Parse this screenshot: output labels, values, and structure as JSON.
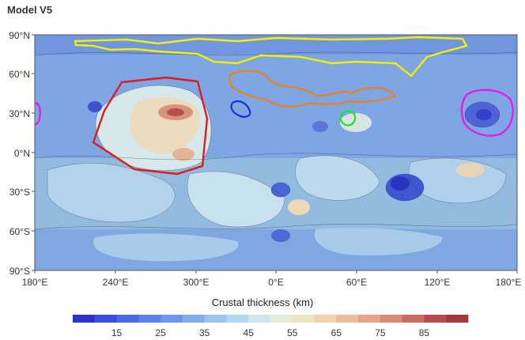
{
  "title": "Model V5",
  "map": {
    "lat_labels": [
      "90°N",
      "60°N",
      "30°N",
      "0°N",
      "30°S",
      "60°S",
      "90°S"
    ],
    "lon_labels": [
      "180°E",
      "240°E",
      "300°E",
      "0°E",
      "60°E",
      "120°E",
      "180°E"
    ],
    "regions": [
      {
        "name": "north-polar-yellow",
        "color": "#f2f000"
      },
      {
        "name": "tharsis-red",
        "color": "#dd1c1c"
      },
      {
        "name": "orange-basin",
        "color": "#f08018"
      },
      {
        "name": "blue-region",
        "color": "#1630d8"
      },
      {
        "name": "green-region",
        "color": "#22e02a"
      },
      {
        "name": "magenta-region",
        "color": "#e51ee0"
      }
    ]
  },
  "colorbar": {
    "title": "Crustal thickness (km)",
    "tick_labels": [
      "15",
      "25",
      "35",
      "45",
      "55",
      "65",
      "75",
      "85"
    ],
    "colors": [
      "#2e32c9",
      "#3b4fd8",
      "#4a6ae0",
      "#5b82e6",
      "#6d98ec",
      "#83ade8",
      "#9cc4ec",
      "#b6d6ee",
      "#cfe6ee",
      "#e2ecd6",
      "#eee4c4",
      "#efd2b0",
      "#ebbd9c",
      "#e3a488",
      "#d88a75",
      "#c96c62",
      "#b44b4f",
      "#a13a3e"
    ]
  }
}
